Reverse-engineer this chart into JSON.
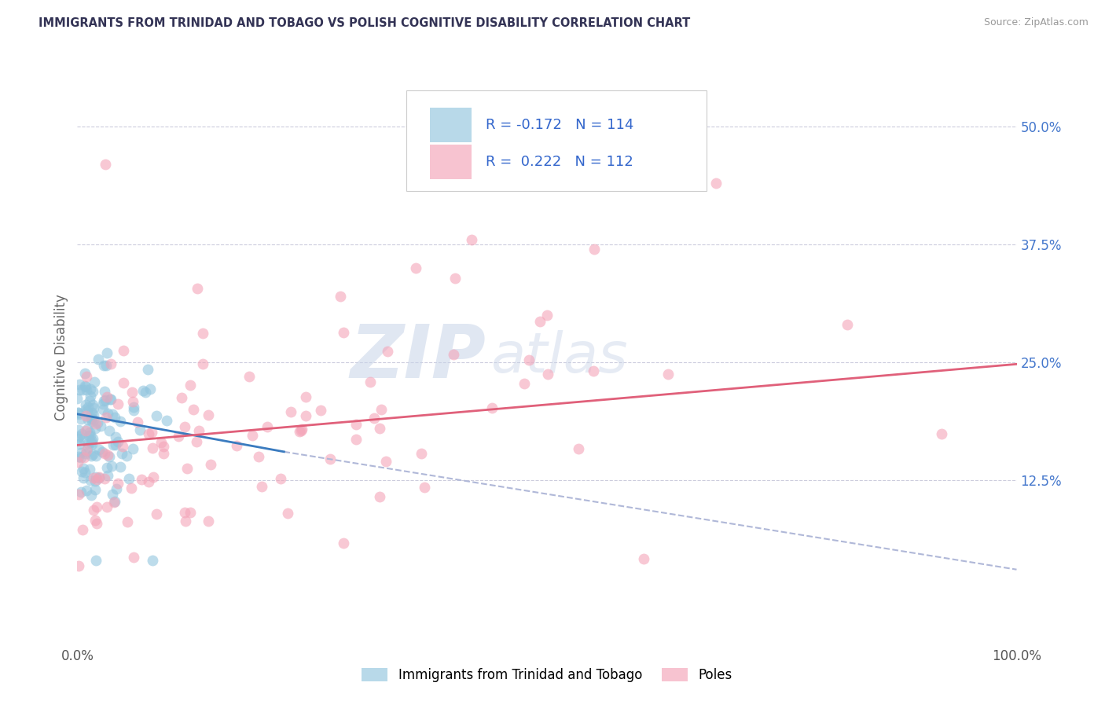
{
  "title": "IMMIGRANTS FROM TRINIDAD AND TOBAGO VS POLISH COGNITIVE DISABILITY CORRELATION CHART",
  "source": "Source: ZipAtlas.com",
  "ylabel": "Cognitive Disability",
  "yticks": [
    "12.5%",
    "25.0%",
    "37.5%",
    "50.0%"
  ],
  "ytick_vals": [
    0.125,
    0.25,
    0.375,
    0.5
  ],
  "xtick_left": "0.0%",
  "xtick_right": "100.0%",
  "xlim": [
    0.0,
    1.0
  ],
  "ylim": [
    -0.05,
    0.56
  ],
  "blue_color": "#92c5de",
  "pink_color": "#f4a4b8",
  "blue_line_color": "#3a7bbf",
  "pink_line_color": "#e0607a",
  "dashed_color": "#b0b8d8",
  "watermark_zip": "ZIP",
  "watermark_atlas": "atlas",
  "legend_label1": "Immigrants from Trinidad and Tobago",
  "legend_label2": "Poles",
  "background_color": "#ffffff",
  "grid_color": "#ccccdd",
  "title_color": "#333355",
  "source_color": "#999999",
  "tick_color": "#4477cc",
  "ylabel_color": "#666666"
}
